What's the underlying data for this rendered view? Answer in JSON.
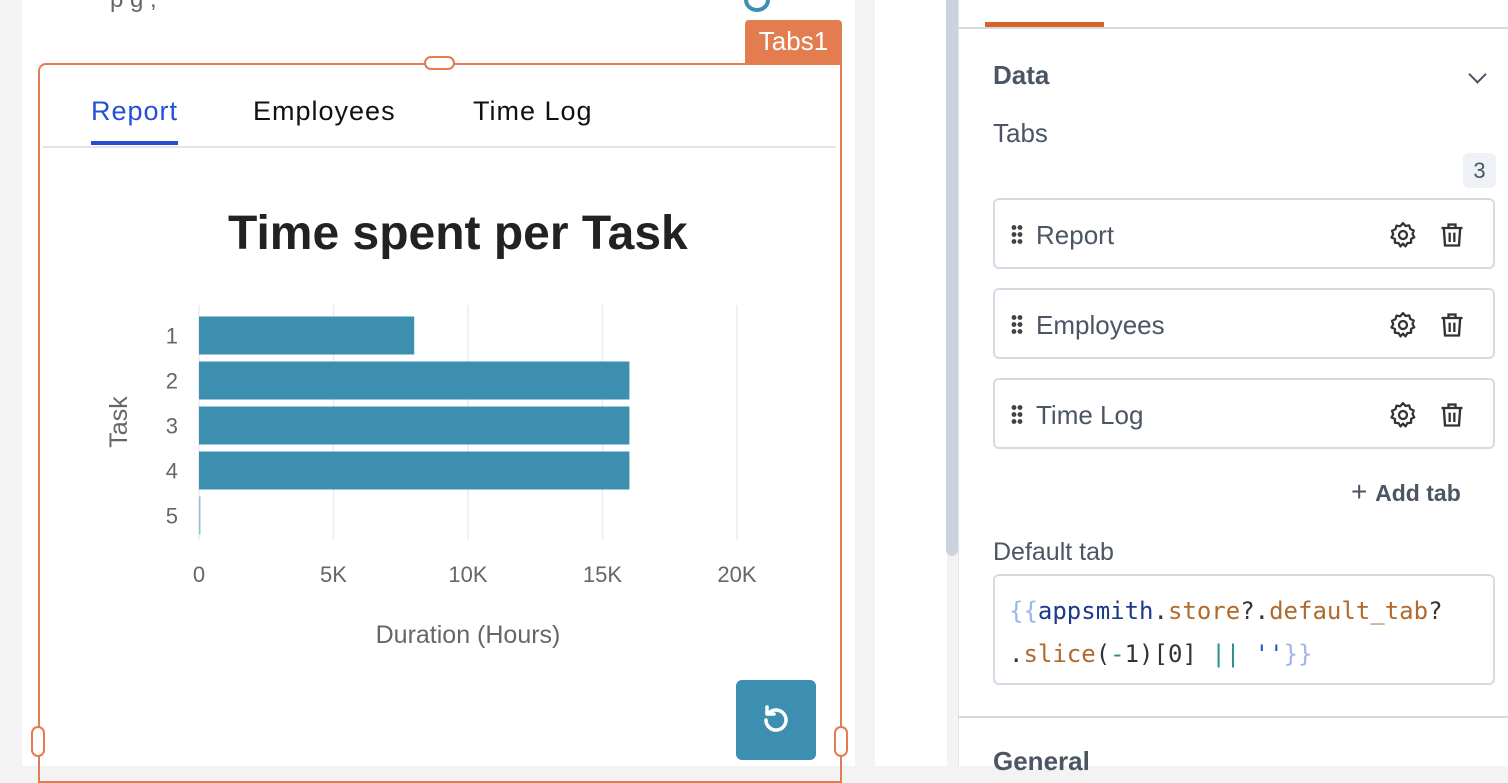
{
  "canvas": {
    "top_text": "p   g   ,",
    "widget_name": "Tabs1"
  },
  "tabs": [
    {
      "label": "Report",
      "active": true
    },
    {
      "label": "Employees"
    },
    {
      "label": "Time Log"
    }
  ],
  "chart_data": {
    "type": "bar",
    "orientation": "horizontal",
    "title": "Time spent per Task",
    "xlabel": "Duration (Hours)",
    "ylabel": "Task",
    "categories": [
      "1",
      "2",
      "3",
      "4",
      "5"
    ],
    "values": [
      8000,
      16000,
      16000,
      16000,
      40
    ],
    "xlim": [
      0,
      22000
    ],
    "xticks": [
      {
        "v": 0,
        "label": "0"
      },
      {
        "v": 5000,
        "label": "5K"
      },
      {
        "v": 10000,
        "label": "10K"
      },
      {
        "v": 15000,
        "label": "15K"
      },
      {
        "v": 20000,
        "label": "20K"
      }
    ],
    "grid": true,
    "color": "#3d8fb0"
  },
  "panel": {
    "section_data": "Data",
    "tabs_label": "Tabs",
    "tabs_count": "3",
    "tab_items": [
      {
        "label": "Report"
      },
      {
        "label": "Employees"
      },
      {
        "label": "Time Log"
      }
    ],
    "add_tab": "Add tab",
    "default_tab_label": "Default tab",
    "default_tab_code": {
      "open": "{{",
      "obj": "appsmith",
      "d1": ".",
      "p1": "store",
      "q1": "?.",
      "p2": "default_tab",
      "q2": "?",
      "d2": ".",
      "fn": "slice",
      "paren1": "(",
      "neg": "-",
      "one": "1)[0] ",
      "or": "||",
      "sp": " ",
      "str": "''",
      "close": "}}"
    },
    "section_general": "General"
  },
  "colors": {
    "accent": "#e37c4f",
    "tab_active": "#2450d6",
    "bar": "#3d8fb0"
  }
}
